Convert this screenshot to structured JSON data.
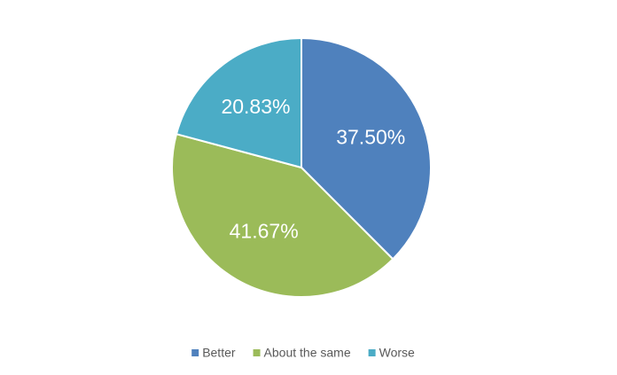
{
  "chart_data": {
    "type": "pie",
    "categories": [
      "Better",
      "About the same",
      "Worse"
    ],
    "values": [
      37.5,
      41.67,
      20.83
    ],
    "value_labels": [
      "37.50%",
      "41.67%",
      "20.83%"
    ],
    "colors": [
      "#4f81bd",
      "#9bbb59",
      "#4bacc6"
    ],
    "legend": "bottom"
  }
}
